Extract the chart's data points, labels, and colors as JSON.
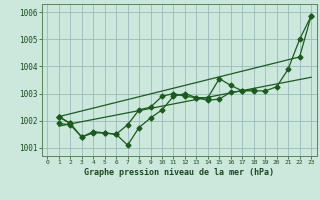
{
  "title": "Graphe pression niveau de la mer (hPa)",
  "background_color": "#cce8dd",
  "grid_color": "#99bbbb",
  "line_color": "#1a5c1a",
  "xlim": [
    -0.5,
    23.5
  ],
  "ylim": [
    1000.7,
    1006.3
  ],
  "yticks": [
    1001,
    1002,
    1003,
    1004,
    1005,
    1006
  ],
  "xticks": [
    0,
    1,
    2,
    3,
    4,
    5,
    6,
    7,
    8,
    9,
    10,
    11,
    12,
    13,
    14,
    15,
    16,
    17,
    18,
    19,
    20,
    21,
    22,
    23
  ],
  "series": [
    [
      null,
      1001.9,
      1001.85,
      1001.4,
      1001.55,
      1001.55,
      1001.5,
      1001.1,
      1001.75,
      1002.1,
      1002.4,
      1002.9,
      1003.0,
      1002.85,
      1002.85,
      1003.55,
      1003.3,
      1003.1,
      1003.1,
      1003.1,
      1003.25,
      1003.9,
      1005.0,
      1005.85
    ],
    [
      null,
      1002.15,
      1001.9,
      1001.4,
      1001.6,
      1001.55,
      1001.5,
      1001.85,
      1002.4,
      1002.5,
      1002.9,
      1003.0,
      1002.9,
      1002.85,
      1002.75,
      1002.8,
      1003.05,
      1003.1,
      1003.15,
      null,
      null,
      null,
      null,
      null
    ],
    [
      null,
      1002.15,
      1001.9,
      null,
      null,
      null,
      null,
      null,
      null,
      null,
      null,
      null,
      null,
      null,
      null,
      null,
      null,
      null,
      null,
      null,
      null,
      null,
      null,
      null
    ],
    [
      null,
      1002.15,
      null,
      null,
      null,
      null,
      null,
      null,
      null,
      null,
      null,
      null,
      null,
      null,
      null,
      null,
      null,
      null,
      null,
      null,
      null,
      null,
      1004.35,
      1005.85
    ]
  ],
  "trend_x": [
    1,
    23
  ],
  "trend_y": [
    1001.8,
    1003.6
  ]
}
